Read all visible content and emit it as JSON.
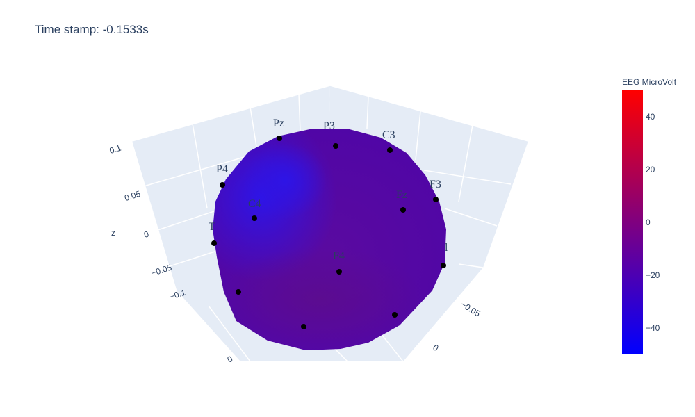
{
  "title": "Time stamp: -0.1533s",
  "chart_data": {
    "type": "surface3d",
    "z_axis": {
      "label": "z",
      "ticks": [
        "0.1",
        "0.05",
        "0",
        "−0.05",
        "−0.1"
      ]
    },
    "x_axis": {
      "ticks": [
        "−0.05",
        "0"
      ]
    },
    "y_axis": {
      "ticks": [
        "0"
      ]
    },
    "electrodes": [
      {
        "label": "Pz",
        "value": -28
      },
      {
        "label": "P3",
        "value": -18
      },
      {
        "label": "C3",
        "value": -14
      },
      {
        "label": "P4",
        "value": -32
      },
      {
        "label": "Fz",
        "value": -12
      },
      {
        "label": "F3",
        "value": -10
      },
      {
        "label": "C4",
        "value": -30
      },
      {
        "label": "T",
        "value": -34
      },
      {
        "label": "F4",
        "value": -8
      },
      {
        "label": "l",
        "value": -10
      }
    ],
    "colorbar": {
      "title": "EEG MicroVolt",
      "range": [
        -50,
        50
      ],
      "ticks": [
        40,
        20,
        0,
        -20,
        -40
      ],
      "tick_labels": [
        "40",
        "20",
        "0",
        "−20",
        "−40"
      ],
      "colors": [
        "#0000ff",
        "#ff0000"
      ]
    },
    "scene_colors": {
      "background": "#e5ecf6",
      "grid": "#ffffff",
      "marker": "#000000"
    }
  }
}
